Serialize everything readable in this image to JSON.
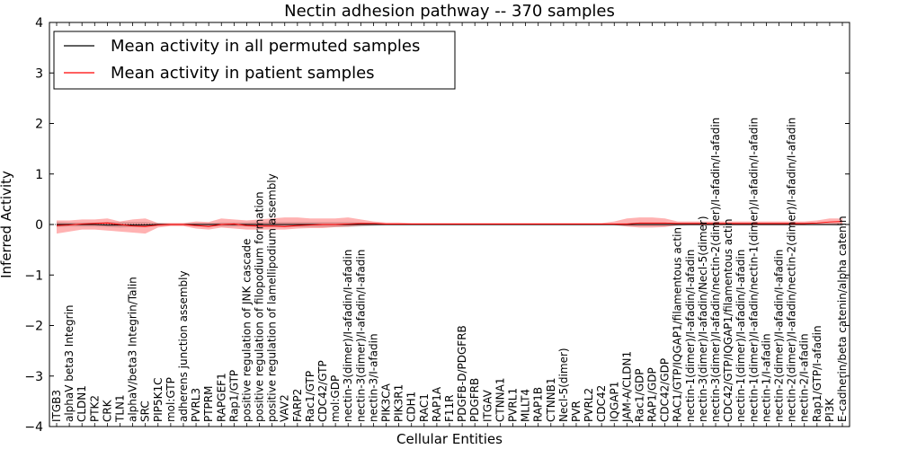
{
  "chart_data": {
    "type": "line",
    "title": "Nectin adhesion pathway -- 370 samples",
    "xlabel": "Cellular Entities",
    "ylabel": "Inferred Activity",
    "ylim": [
      -4,
      4
    ],
    "yticks": [
      "4",
      "3",
      "2",
      "1",
      "0",
      "−1",
      "−2",
      "−3",
      "−4"
    ],
    "legend_position": "top-left",
    "categories": [
      "ITGB3",
      "alphaV beta3 Integrin",
      "CLDN1",
      "PTK2",
      "CRK",
      "TLN1",
      "alphaV/beta3 Integrin/Talin",
      "SRC",
      "PIP5K1C",
      "mol:GTP",
      "adherens junction assembly",
      "PVRL3",
      "PTPRM",
      "RAPGEF1",
      "Rap1/GTP",
      "positive regulation of JNK cascade",
      "positive regulation of filopodium formation",
      "positive regulation of lamellipodium assembly",
      "VAV2",
      "FARP2",
      "Rac1/GTP",
      "CDC42/GTP",
      "mol:GDP",
      "nectin-3(dimer)/I-afadin/I-afadin",
      "nectin-3(dimer)/I-afadin/I-afadin",
      "nectin-3/I-afadin",
      "PIK3CA",
      "PIK3R1",
      "CDH1",
      "RAC1",
      "RAP1A",
      "F11R",
      "PDGFB-D/PDGFRB",
      "PDGFRB",
      "ITGAV",
      "CTNNA1",
      "PVRL1",
      "MLLT4",
      "RAP1B",
      "CTNNB1",
      "Necl-5(dimer)",
      "PVR",
      "PVRL2",
      "CDC42",
      "IQGAP1",
      "JAM-A/CLDN1",
      "Rac1/GDP",
      "RAP1/GDP",
      "CDC42/GDP",
      "RAC1/GTP/IQGAP1/filamentous actin",
      "nectin-1(dimer)/I-afadin/I-afadin",
      "nectin-3(dimer)/I-afadin/Necl-5(dimer)",
      "nectin-3(dimer)/I-afadin/nectin-2(dimer)/I-afadin/I-afadin",
      "CDC42/GTP/IQGAP1/filamentous actin",
      "nectin-1(dimer)/I-afadin/I-afadin",
      "nectin-1(dimer)/I-afadin/nectin-1(dimer)/I-afadin/I-afadin",
      "nectin-1/I-afadin",
      "nectin-2(dimer)/I-afadin/I-afadin",
      "nectin-2(dimer)/I-afadin/nectin-2(dimer)/I-afadin/I-afadin",
      "nectin-2/I-afadin",
      "Rap1/GTP/I-afadin",
      "PI3K",
      "E-cadherin/beta catenin/alpha catenin"
    ],
    "series": [
      {
        "name": "Mean activity in all permuted samples",
        "color": "#000000",
        "values": [
          0.0,
          0.0,
          0.0,
          0.0,
          -0.01,
          -0.01,
          -0.01,
          -0.01,
          0.0,
          0.0,
          0.0,
          0.0,
          0.0,
          0.0,
          0.0,
          0.0,
          0.0,
          0.0,
          0.0,
          0.0,
          0.0,
          0.0,
          0.0,
          0.0,
          0.0,
          0.0,
          0.0,
          0.0,
          0.0,
          0.0,
          0.0,
          0.0,
          0.0,
          0.0,
          0.0,
          0.0,
          0.0,
          0.0,
          0.0,
          0.0,
          0.0,
          0.0,
          0.0,
          0.0,
          0.0,
          0.0,
          0.0,
          0.0,
          0.0,
          0.0,
          0.0,
          0.0,
          0.0,
          0.0,
          0.0,
          0.0,
          0.0,
          0.0,
          0.0,
          0.0,
          0.0,
          0.0,
          0.0
        ],
        "band_lower": [
          -0.05,
          -0.04,
          -0.04,
          -0.04,
          -0.05,
          -0.06,
          -0.05,
          -0.05,
          -0.03,
          -0.02,
          -0.02,
          -0.03,
          -0.03,
          -0.04,
          -0.04,
          -0.04,
          -0.05,
          -0.05,
          -0.05,
          -0.05,
          -0.05,
          -0.05,
          -0.05,
          -0.05,
          -0.04,
          -0.03,
          -0.02,
          -0.02,
          -0.02,
          -0.02,
          -0.02,
          -0.02,
          -0.02,
          -0.02,
          -0.02,
          -0.02,
          -0.02,
          -0.02,
          -0.02,
          -0.02,
          -0.02,
          -0.02,
          -0.02,
          -0.02,
          -0.02,
          -0.03,
          -0.03,
          -0.03,
          -0.03,
          -0.03,
          -0.02,
          -0.02,
          -0.02,
          -0.02,
          -0.02,
          -0.02,
          -0.02,
          -0.02,
          -0.02,
          -0.02,
          -0.02,
          -0.02,
          -0.03
        ],
        "band_upper": [
          0.05,
          0.04,
          0.04,
          0.04,
          0.05,
          0.05,
          0.05,
          0.05,
          0.03,
          0.02,
          0.02,
          0.03,
          0.03,
          0.04,
          0.04,
          0.04,
          0.05,
          0.05,
          0.05,
          0.05,
          0.05,
          0.05,
          0.05,
          0.05,
          0.04,
          0.03,
          0.02,
          0.02,
          0.02,
          0.02,
          0.02,
          0.02,
          0.02,
          0.02,
          0.02,
          0.02,
          0.02,
          0.02,
          0.02,
          0.02,
          0.02,
          0.02,
          0.02,
          0.02,
          0.02,
          0.03,
          0.03,
          0.03,
          0.03,
          0.03,
          0.02,
          0.02,
          0.02,
          0.02,
          0.02,
          0.02,
          0.02,
          0.02,
          0.02,
          0.02,
          0.02,
          0.02,
          0.03
        ]
      },
      {
        "name": "Mean activity in patient samples",
        "color": "#ff0000",
        "values": [
          -0.02,
          -0.01,
          0.01,
          0.02,
          0.03,
          0.0,
          -0.03,
          -0.04,
          -0.01,
          0.0,
          0.0,
          -0.02,
          -0.04,
          0.0,
          0.01,
          -0.02,
          -0.03,
          -0.03,
          -0.04,
          -0.02,
          -0.01,
          0.0,
          0.0,
          0.01,
          0.02,
          0.02,
          0.01,
          0.01,
          0.01,
          0.01,
          0.01,
          0.01,
          0.01,
          0.01,
          0.01,
          0.01,
          0.01,
          0.01,
          0.01,
          0.01,
          0.01,
          0.01,
          0.01,
          0.01,
          0.01,
          0.01,
          0.03,
          0.03,
          0.03,
          0.02,
          0.02,
          0.02,
          0.02,
          0.02,
          0.02,
          0.02,
          0.02,
          0.02,
          0.02,
          0.02,
          0.03,
          0.05,
          0.06
        ],
        "band_lower": [
          -0.18,
          -0.14,
          -0.1,
          -0.1,
          -0.12,
          -0.14,
          -0.16,
          -0.18,
          -0.06,
          -0.03,
          -0.03,
          -0.08,
          -0.1,
          -0.06,
          -0.08,
          -0.1,
          -0.1,
          -0.1,
          -0.1,
          -0.08,
          -0.07,
          -0.07,
          -0.05,
          -0.04,
          -0.02,
          -0.01,
          0.0,
          0.0,
          0.0,
          0.0,
          0.0,
          0.0,
          0.0,
          0.0,
          0.0,
          0.0,
          0.0,
          0.0,
          0.0,
          0.0,
          0.0,
          0.0,
          0.0,
          0.0,
          -0.01,
          -0.04,
          -0.06,
          -0.06,
          -0.05,
          -0.01,
          -0.01,
          -0.01,
          -0.01,
          -0.01,
          -0.01,
          -0.01,
          -0.01,
          -0.01,
          -0.01,
          -0.01,
          0.0,
          0.0,
          0.0
        ],
        "band_upper": [
          0.08,
          0.08,
          0.1,
          0.1,
          0.12,
          0.06,
          0.1,
          0.12,
          0.03,
          0.03,
          0.03,
          0.06,
          0.05,
          0.12,
          0.1,
          0.08,
          0.1,
          0.12,
          0.14,
          0.14,
          0.12,
          0.12,
          0.12,
          0.14,
          0.1,
          0.06,
          0.04,
          0.04,
          0.03,
          0.03,
          0.03,
          0.03,
          0.03,
          0.03,
          0.03,
          0.03,
          0.03,
          0.03,
          0.03,
          0.03,
          0.03,
          0.03,
          0.03,
          0.03,
          0.06,
          0.12,
          0.14,
          0.14,
          0.12,
          0.06,
          0.06,
          0.06,
          0.06,
          0.06,
          0.06,
          0.06,
          0.06,
          0.06,
          0.06,
          0.06,
          0.08,
          0.12,
          0.12
        ]
      }
    ]
  }
}
